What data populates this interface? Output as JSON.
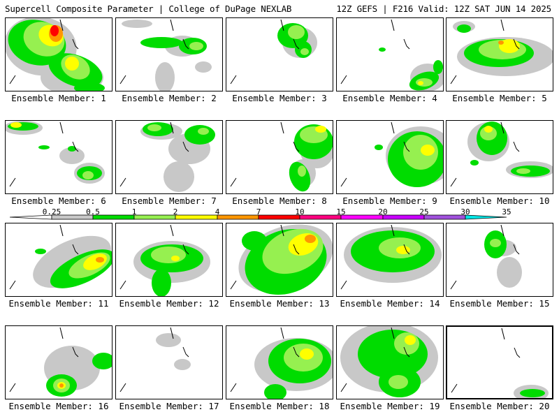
{
  "header": {
    "left": "Supercell Composite Parameter | College of DuPage NEXLAB",
    "right": "12Z GEFS | F216 Valid: 12Z SAT JUN 14 2025"
  },
  "member_label_prefix": "Ensemble Member:",
  "members": [
    {
      "id": "1",
      "label": "Ensemble Member: 1"
    },
    {
      "id": "2",
      "label": "Ensemble Member: 2"
    },
    {
      "id": "3",
      "label": "Ensemble Member: 3"
    },
    {
      "id": "4",
      "label": "Ensemble Member: 4"
    },
    {
      "id": "5",
      "label": "Ensemble Member: 5"
    },
    {
      "id": "6",
      "label": "Ensemble Member: 6"
    },
    {
      "id": "7",
      "label": "Ensemble Member: 7"
    },
    {
      "id": "8",
      "label": "Ensemble Member: 8"
    },
    {
      "id": "9",
      "label": "Ensemble Member: 9"
    },
    {
      "id": "10",
      "label": "Ensemble Member: 10"
    },
    {
      "id": "11",
      "label": "Ensemble Member: 11"
    },
    {
      "id": "12",
      "label": "Ensemble Member: 12"
    },
    {
      "id": "13",
      "label": "Ensemble Member: 13"
    },
    {
      "id": "14",
      "label": "Ensemble Member: 14"
    },
    {
      "id": "15",
      "label": "Ensemble Member: 15"
    },
    {
      "id": "16",
      "label": "Ensemble Member: 16"
    },
    {
      "id": "17",
      "label": "Ensemble Member: 17"
    },
    {
      "id": "18",
      "label": "Ensemble Member: 18"
    },
    {
      "id": "19",
      "label": "Ensemble Member: 19"
    },
    {
      "id": "20",
      "label": "Ensemble Member: 20"
    }
  ],
  "highlighted_member": "20",
  "colorbar": {
    "labels": [
      "0.25",
      "0.5",
      "1",
      "2",
      "4",
      "7",
      "10",
      "15",
      "20",
      "25",
      "30",
      "35"
    ],
    "colors": [
      "#c8c8c8",
      "#00dc00",
      "#96f050",
      "#ffff00",
      "#ff9600",
      "#ff0000",
      "#ff0080",
      "#ff00ff",
      "#c800ff",
      "#a050dc",
      "#00e6e6"
    ]
  }
}
